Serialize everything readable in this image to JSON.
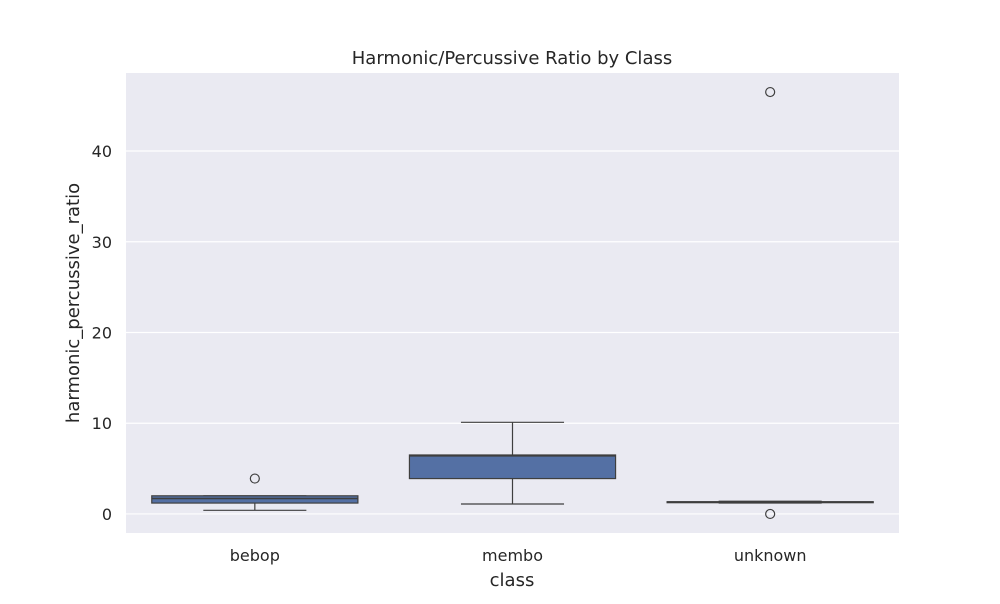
{
  "chart_data": {
    "type": "box",
    "title": "Harmonic/Percussive Ratio by Class",
    "xlabel": "class",
    "ylabel": "harmonic_percussive_ratio",
    "ylim": [
      -2.1,
      48.6
    ],
    "yticks": [
      0,
      10,
      20,
      30,
      40
    ],
    "grid": true,
    "categories": [
      "bebop",
      "membo",
      "unknown"
    ],
    "boxes": [
      {
        "category": "bebop",
        "whisker_low": 0.4,
        "q1": 1.2,
        "median": 1.7,
        "q3": 2.0,
        "whisker_high": 2.0,
        "outliers": [
          3.9
        ]
      },
      {
        "category": "membo",
        "whisker_low": 1.1,
        "q1": 3.9,
        "median": 6.4,
        "q3": 6.5,
        "whisker_high": 10.1,
        "outliers": []
      },
      {
        "category": "unknown",
        "whisker_low": 1.2,
        "q1": 1.25,
        "median": 1.3,
        "q3": 1.35,
        "whisker_high": 1.4,
        "outliers": [
          0.0,
          46.5
        ]
      }
    ],
    "colors": {
      "box_fill": "#5470a4",
      "box_edge": "#3f3f3f",
      "axes_bg": "#eaeaf2",
      "grid": "#ffffff",
      "text": "#262626"
    }
  }
}
